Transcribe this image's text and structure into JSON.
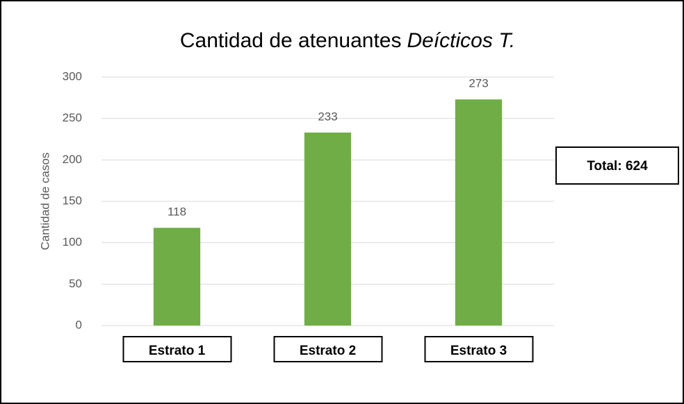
{
  "chart_data": {
    "type": "bar",
    "title": "Cantidad de atenuantes",
    "title_emphasis": "Deícticos T.",
    "y_label": "Cantidad de casos",
    "categories": [
      "Estrato 1",
      "Estrato 2",
      "Estrato 3"
    ],
    "values": [
      118,
      233,
      273
    ],
    "color": "#70ad47",
    "ylim": [
      0,
      300
    ],
    "yticks": [
      0,
      50,
      100,
      150,
      200,
      250,
      300
    ],
    "grid": true,
    "annotation": "Total: 624"
  }
}
